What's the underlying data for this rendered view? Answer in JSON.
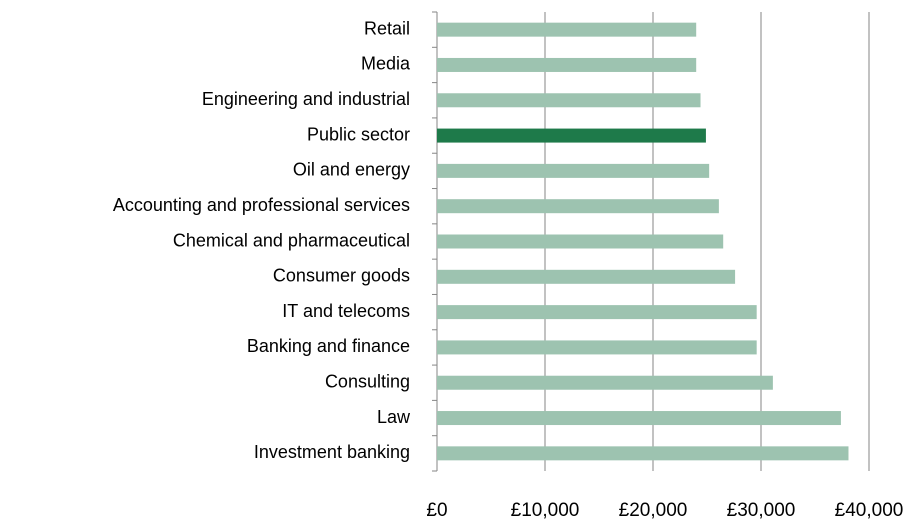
{
  "chart_data": {
    "type": "barh",
    "categories": [
      "Retail",
      "Media",
      "Engineering and industrial",
      "Public sector",
      "Oil and energy",
      "Accounting and professional services",
      "Chemical and pharmaceutical",
      "Consumer goods",
      "IT and telecoms",
      "Banking and finance",
      "Consulting",
      "Law",
      "Investment banking"
    ],
    "values": [
      24000,
      24000,
      24400,
      24900,
      25200,
      26100,
      26500,
      27600,
      29600,
      29600,
      31100,
      37400,
      38100
    ],
    "colors": [
      "#9dc3b0",
      "#9dc3b0",
      "#9dc3b0",
      "#1e7a4a",
      "#9dc3b0",
      "#9dc3b0",
      "#9dc3b0",
      "#9dc3b0",
      "#9dc3b0",
      "#9dc3b0",
      "#9dc3b0",
      "#9dc3b0",
      "#9dc3b0"
    ],
    "xlim": [
      0,
      40000
    ],
    "xticks": [
      {
        "value": 0,
        "label": "£0"
      },
      {
        "value": 10000,
        "label": "£10,000"
      },
      {
        "value": 20000,
        "label": "£20,000"
      },
      {
        "value": 30000,
        "label": "£30,000"
      },
      {
        "value": 40000,
        "label": "£40,000"
      }
    ],
    "grid": true
  }
}
